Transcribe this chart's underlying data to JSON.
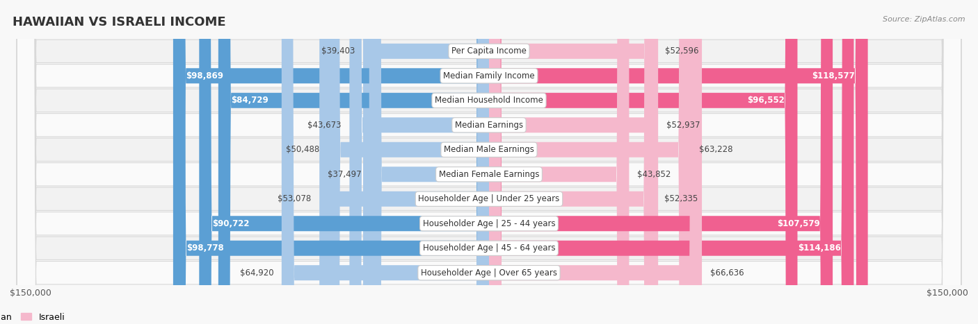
{
  "title": "HAWAIIAN VS ISRAELI INCOME",
  "source": "Source: ZipAtlas.com",
  "categories": [
    "Per Capita Income",
    "Median Family Income",
    "Median Household Income",
    "Median Earnings",
    "Median Male Earnings",
    "Median Female Earnings",
    "Householder Age | Under 25 years",
    "Householder Age | 25 - 44 years",
    "Householder Age | 45 - 64 years",
    "Householder Age | Over 65 years"
  ],
  "hawaiian_values": [
    39403,
    98869,
    84729,
    43673,
    50488,
    37497,
    53078,
    90722,
    98778,
    64920
  ],
  "israeli_values": [
    52596,
    118577,
    96552,
    52937,
    63228,
    43852,
    52335,
    107579,
    114186,
    66636
  ],
  "hawaiian_labels": [
    "$39,403",
    "$98,869",
    "$84,729",
    "$43,673",
    "$50,488",
    "$37,497",
    "$53,078",
    "$90,722",
    "$98,778",
    "$64,920"
  ],
  "israeli_labels": [
    "$52,596",
    "$118,577",
    "$96,552",
    "$52,937",
    "$63,228",
    "$43,852",
    "$52,335",
    "$107,579",
    "$114,186",
    "$66,636"
  ],
  "hawaiian_color_light": "#a8c8e8",
  "hawaiian_color_dark": "#5b9fd4",
  "israeli_color_light": "#f5b8cc",
  "israeli_color_dark": "#f06090",
  "large_threshold": 70000,
  "max_value": 150000,
  "row_bg_odd": "#f2f2f2",
  "row_bg_even": "#fafafa",
  "title_fontsize": 13,
  "label_fontsize": 8.5,
  "value_fontsize": 8.5,
  "legend_fontsize": 9
}
